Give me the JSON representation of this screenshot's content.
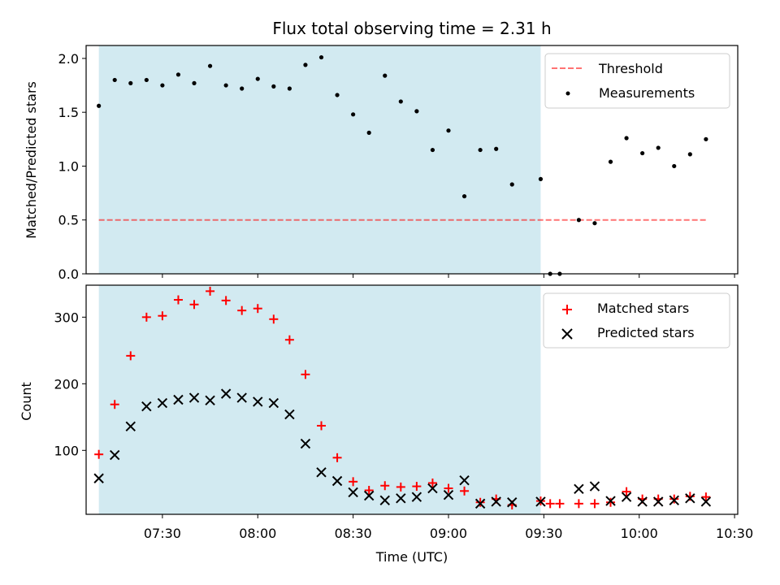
{
  "chart_data": [
    {
      "type": "scatter",
      "title": "Flux total observing time = 2.31 h",
      "ylabel": "Matched/Predicted stars",
      "xlim": [
        "07:06",
        "10:31"
      ],
      "ylim": [
        0,
        2.12
      ],
      "shaded_range": [
        "07:10",
        "09:29"
      ],
      "shade_color": "#add8e6",
      "yticks": [
        "0.0",
        "0.5",
        "1.0",
        "1.5",
        "2.0"
      ],
      "threshold": {
        "name": "Threshold",
        "y": 0.5,
        "x": [
          "07:10",
          "10:21"
        ],
        "color": "#ff0000"
      },
      "series": [
        {
          "name": "Measurements",
          "color": "#000000",
          "x": [
            "07:10",
            "07:15",
            "07:20",
            "07:25",
            "07:30",
            "07:35",
            "07:40",
            "07:45",
            "07:50",
            "07:55",
            "08:00",
            "08:05",
            "08:10",
            "08:15",
            "08:20",
            "08:25",
            "08:30",
            "08:35",
            "08:40",
            "08:45",
            "08:50",
            "08:55",
            "09:00",
            "09:05",
            "09:10",
            "09:15",
            "09:20",
            "09:29",
            "09:32",
            "09:35",
            "09:41",
            "09:46",
            "09:51",
            "09:56",
            "10:01",
            "10:06",
            "10:11",
            "10:16",
            "10:21"
          ],
          "values": [
            1.56,
            1.8,
            1.77,
            1.8,
            1.75,
            1.85,
            1.77,
            1.93,
            1.75,
            1.72,
            1.81,
            1.74,
            1.72,
            1.94,
            2.01,
            1.66,
            1.48,
            1.31,
            1.84,
            1.6,
            1.51,
            1.15,
            1.33,
            0.72,
            1.15,
            1.16,
            0.83,
            0.88,
            0.0,
            0.0,
            0.5,
            0.47,
            1.04,
            1.26,
            1.12,
            1.17,
            1.0,
            1.11,
            1.25
          ]
        }
      ],
      "legend": "top-right"
    },
    {
      "type": "scatter",
      "ylabel": "Count",
      "xlabel": "Time (UTC)",
      "xlim": [
        "07:06",
        "10:31"
      ],
      "ylim": [
        4,
        348
      ],
      "shaded_range": [
        "07:10",
        "09:29"
      ],
      "shade_color": "#add8e6",
      "xticks": [
        "07:30",
        "08:00",
        "08:30",
        "09:00",
        "09:30",
        "10:00",
        "10:30"
      ],
      "yticks": [
        "100",
        "200",
        "300"
      ],
      "series": [
        {
          "name": "Matched stars",
          "marker": "+",
          "color": "#ff0000",
          "x": [
            "07:10",
            "07:15",
            "07:20",
            "07:25",
            "07:30",
            "07:35",
            "07:40",
            "07:45",
            "07:50",
            "07:55",
            "08:00",
            "08:05",
            "08:10",
            "08:15",
            "08:20",
            "08:25",
            "08:30",
            "08:35",
            "08:40",
            "08:45",
            "08:50",
            "08:55",
            "09:00",
            "09:05",
            "09:10",
            "09:15",
            "09:20",
            "09:29",
            "09:32",
            "09:35",
            "09:41",
            "09:46",
            "09:51",
            "09:56",
            "10:01",
            "10:06",
            "10:11",
            "10:16",
            "10:21"
          ],
          "values": [
            94,
            169,
            242,
            300,
            302,
            326,
            319,
            339,
            325,
            310,
            313,
            297,
            266,
            214,
            137,
            89,
            53,
            40,
            47,
            45,
            46,
            51,
            43,
            39,
            22,
            27,
            18,
            24,
            20,
            20,
            20,
            20,
            22,
            38,
            27,
            27,
            27,
            31,
            30
          ]
        },
        {
          "name": "Predicted stars",
          "marker": "x",
          "color": "#000000",
          "x": [
            "07:10",
            "07:15",
            "07:20",
            "07:25",
            "07:30",
            "07:35",
            "07:40",
            "07:45",
            "07:50",
            "07:55",
            "08:00",
            "08:05",
            "08:10",
            "08:15",
            "08:20",
            "08:25",
            "08:30",
            "08:35",
            "08:40",
            "08:45",
            "08:50",
            "08:55",
            "09:00",
            "09:05",
            "09:10",
            "09:15",
            "09:20",
            "09:29",
            "09:41",
            "09:46",
            "09:51",
            "09:56",
            "10:01",
            "10:06",
            "10:11",
            "10:16",
            "10:21"
          ],
          "values": [
            58,
            93,
            136,
            166,
            171,
            176,
            179,
            175,
            185,
            179,
            173,
            171,
            154,
            110,
            67,
            54,
            37,
            32,
            25,
            28,
            30,
            43,
            33,
            55,
            20,
            23,
            22,
            23,
            42,
            46,
            24,
            30,
            23,
            23,
            25,
            28,
            23
          ]
        }
      ],
      "legend": "top-right"
    }
  ]
}
